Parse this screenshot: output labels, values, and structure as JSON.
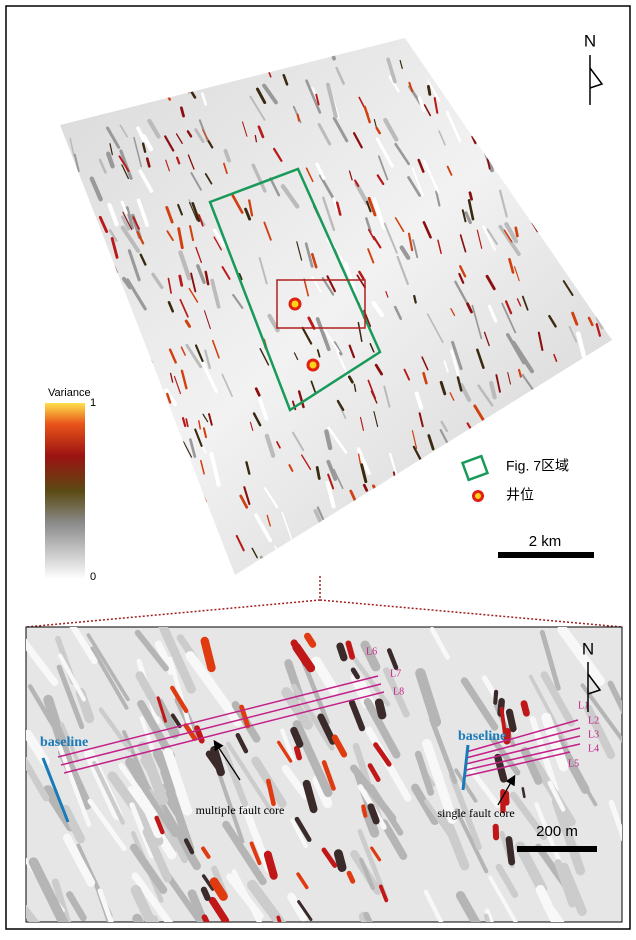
{
  "top_panel": {
    "north": "N",
    "colorbar": {
      "title": "Variance",
      "max": "1",
      "min": "0"
    },
    "legend": [
      {
        "label": "Fig. 7区域"
      },
      {
        "label": "井位"
      }
    ],
    "scale": "2 km"
  },
  "bottom_panel": {
    "north": "N",
    "lines": [
      "L6",
      "L7",
      "L8",
      "L1",
      "L2",
      "L3",
      "L4",
      "L5"
    ],
    "baselines": [
      "baseline",
      "baseline"
    ],
    "annotations": [
      "multiple fault core",
      "single fault core"
    ],
    "scale": "200 m"
  }
}
